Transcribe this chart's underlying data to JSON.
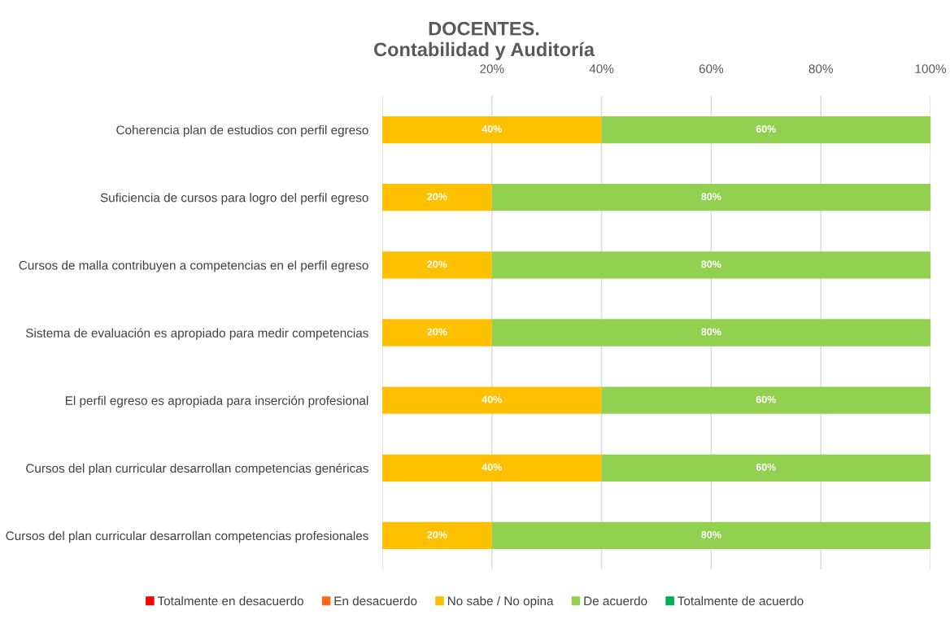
{
  "chart_data": {
    "type": "bar",
    "orientation": "horizontal",
    "stacked": true,
    "title": "DOCENTES.\nContabilidad y Auditoría",
    "categories": [
      "Coherencia plan de estudios con perfil egreso",
      "Suficiencia de cursos para logro del perfil egreso",
      "Cursos de malla contribuyen a competencias en el perfil egreso",
      "Sistema de evaluación es apropiado para medir competencias",
      "El perfil egreso es apropiada para inserción profesional",
      "Cursos del plan curricular desarrollan competencias genéricas",
      "Cursos del plan curricular desarrollan competencias profesionales"
    ],
    "series": [
      {
        "name": "Totalmente en desacuerdo",
        "color": "#ff0000",
        "values": [
          0,
          0,
          0,
          0,
          0,
          0,
          0
        ]
      },
      {
        "name": "En desacuerdo",
        "color": "#ff6a13",
        "values": [
          0,
          0,
          0,
          0,
          0,
          0,
          0
        ]
      },
      {
        "name": "No sabe / No opina",
        "color": "#ffc000",
        "values": [
          40,
          20,
          20,
          20,
          40,
          40,
          20
        ],
        "value_labels": [
          "40%",
          "20%",
          "20%",
          "20%",
          "40%",
          "40%",
          "20%"
        ]
      },
      {
        "name": "De acuerdo",
        "color": "#92d050",
        "values": [
          60,
          80,
          80,
          80,
          60,
          60,
          80
        ],
        "value_labels": [
          "60%",
          "80%",
          "80%",
          "80%",
          "60%",
          "60%",
          "80%"
        ]
      },
      {
        "name": "Totalmente de acuerdo",
        "color": "#00b050",
        "values": [
          0,
          0,
          0,
          0,
          0,
          0,
          0
        ]
      }
    ],
    "xlim": [
      0,
      100
    ],
    "xticks": [
      {
        "value": 0,
        "label": null
      },
      {
        "value": 20,
        "label": "20%"
      },
      {
        "value": 40,
        "label": "40%"
      },
      {
        "value": 60,
        "label": "60%"
      },
      {
        "value": 80,
        "label": "80%"
      },
      {
        "value": 100,
        "label": "100%"
      }
    ],
    "grid": "x",
    "legend": "bottom"
  }
}
